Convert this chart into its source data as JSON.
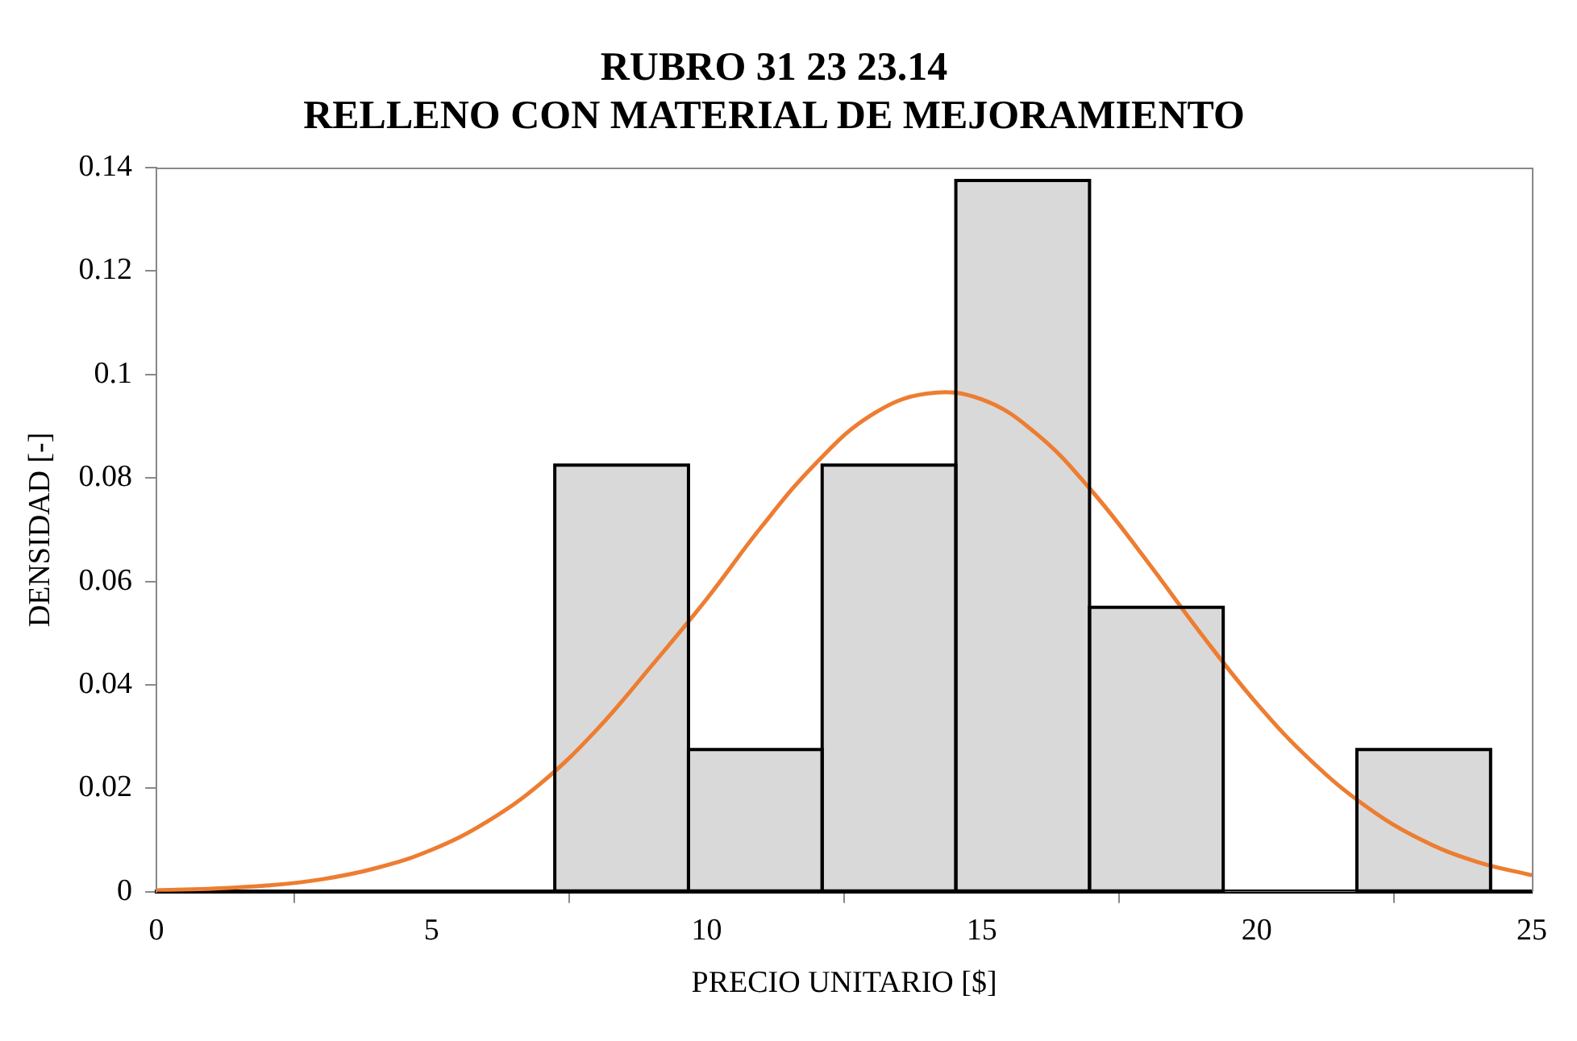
{
  "chart_data": {
    "type": "histogram",
    "title": "RUBRO 31 23 23.14\nRELLENO CON MATERIAL DE MEJORAMIENTO",
    "xlabel": "PRECIO UNITARIO [$]",
    "ylabel": "DENSIDAD [-]",
    "xlim": [
      0,
      25
    ],
    "xticks": [
      0,
      5,
      10,
      15,
      20,
      25
    ],
    "ylim": [
      0,
      0.14
    ],
    "yticks": [
      0,
      0.02,
      0.04,
      0.06,
      0.08,
      0.1,
      0.12,
      0.14
    ],
    "grid": false,
    "legend": false,
    "series": [
      {
        "color": "#d9d9d9",
        "bins": [
          7.24,
          9.67,
          12.1,
          14.53,
          16.96,
          19.39,
          21.82,
          24.25
        ],
        "values": [
          0.0825,
          0.0275,
          0.0825,
          0.1375,
          0.055,
          0,
          0.0275
        ]
      },
      {
        "type": "line",
        "color": "#ed7d31",
        "marker": "none",
        "x": [
          0,
          1,
          2,
          3,
          4,
          5,
          6,
          7,
          8,
          9,
          10,
          11,
          12,
          13,
          14,
          15,
          16,
          17,
          18,
          19,
          20,
          21,
          22,
          23,
          24,
          25
        ],
        "values": [
          0.0003,
          0.0006,
          0.0012,
          0.0024,
          0.0046,
          0.0081,
          0.0135,
          0.0211,
          0.0313,
          0.0437,
          0.0566,
          0.0706,
          0.083,
          0.0922,
          0.0963,
          0.0952,
          0.0885,
          0.0775,
          0.064,
          0.0497,
          0.0364,
          0.0252,
          0.0164,
          0.01,
          0.0058,
          0.0032
        ]
      }
    ]
  }
}
